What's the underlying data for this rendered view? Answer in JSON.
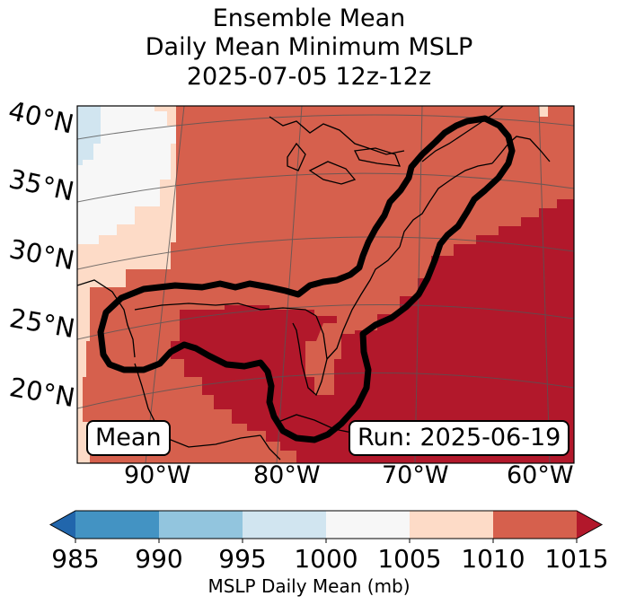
{
  "title": {
    "line1": "Ensemble Mean",
    "line2": "Daily Mean Minimum MSLP",
    "line3": "2025-07-05 12z-12z"
  },
  "badges": {
    "left": "Mean",
    "right": "Run: 2025-06-19"
  },
  "lat_labels": [
    "40°N",
    "35°N",
    "30°N",
    "25°N",
    "20°N"
  ],
  "lon_labels": [
    "90°W",
    "80°W",
    "70°W",
    "60°W"
  ],
  "colorbar": {
    "label": "MSLP Daily Mean (mb)",
    "ticks": [
      "985",
      "990",
      "995",
      "1000",
      "1005",
      "1010",
      "1015"
    ],
    "colors": [
      "#2166ac",
      "#4393c3",
      "#92c5de",
      "#d1e5f0",
      "#f7f7f7",
      "#fddbc7",
      "#d6604d",
      "#b2182b"
    ]
  },
  "chart_data": {
    "type": "heatmap",
    "title": "Ensemble Mean Daily Mean Minimum MSLP 2025-07-05 12z-12z",
    "variable": "MSLP Daily Mean (mb)",
    "levels": [
      985,
      990,
      995,
      1000,
      1005,
      1010,
      1015
    ],
    "extend": "both",
    "lon_range": [
      -96,
      -58
    ],
    "lat_range": [
      16,
      41
    ],
    "contour_label": "Mean",
    "run": "2025-06-19"
  }
}
